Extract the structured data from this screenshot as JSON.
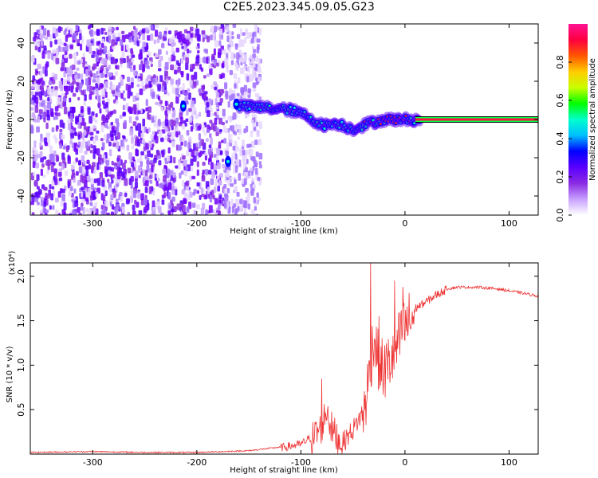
{
  "title": "C2E5.2023.345.09.05.G23",
  "chart_data": [
    {
      "type": "heatmap",
      "xlabel": "Height of straight line (km)",
      "ylabel": "Frequency (Hz)",
      "xlim": [
        -360,
        128
      ],
      "ylim": [
        -50,
        50
      ],
      "x_ticks": [
        -300,
        -200,
        -100,
        0,
        100
      ],
      "y_ticks": [
        -40,
        -20,
        0,
        20,
        40
      ],
      "colorbar": {
        "label": "Normalized spectral amplitude",
        "range": [
          0,
          1
        ],
        "ticks": [
          0.0,
          0.2,
          0.4,
          0.6,
          0.8
        ],
        "colors": [
          "#ffffff",
          "#c8a0ff",
          "#8a2be2",
          "#5a00ff",
          "#0000ff",
          "#00bfff",
          "#00ffcc",
          "#00ff00",
          "#c8ff00",
          "#ffcc00",
          "#ff5500",
          "#ff0040",
          "#ff1493"
        ]
      },
      "features": {
        "noise_region_x": [
          -360,
          -140
        ],
        "signal_track": [
          [
            -160,
            7
          ],
          [
            -130,
            6
          ],
          [
            -110,
            5
          ],
          [
            -95,
            2
          ],
          [
            -80,
            -3
          ],
          [
            -65,
            -2
          ],
          [
            -50,
            -5
          ],
          [
            -35,
            -2
          ],
          [
            -20,
            0
          ],
          [
            0,
            0
          ],
          [
            128,
            0
          ]
        ],
        "constant_line_from_x": 10,
        "constant_line_freq": 0
      }
    },
    {
      "type": "line",
      "xlabel": "Height of straight line (km)",
      "ylabel": "SNR (10 * v/v)",
      "yscale_label": "(x10⁴)",
      "xlim": [
        -360,
        128
      ],
      "ylim": [
        0,
        2.15
      ],
      "x_ticks": [
        -300,
        -200,
        -100,
        0,
        100
      ],
      "y_ticks": [
        0.5,
        1.0,
        1.5,
        2.0
      ],
      "line_color": "#ee3333",
      "series": [
        {
          "x": [
            -360,
            -300,
            -250,
            -200,
            -150,
            -120,
            -100,
            -90,
            -80,
            -75,
            -70,
            -60,
            -50,
            -40,
            -35,
            -30,
            -25,
            -20,
            -10,
            0,
            10,
            20,
            30,
            40,
            50,
            70,
            90,
            110,
            128
          ],
          "y": [
            0.02,
            0.03,
            0.02,
            0.02,
            0.04,
            0.08,
            0.12,
            0.2,
            0.35,
            0.55,
            0.3,
            0.15,
            0.3,
            0.5,
            0.9,
            1.4,
            1.1,
            1.0,
            1.2,
            1.5,
            1.65,
            1.72,
            1.8,
            1.86,
            1.88,
            1.88,
            1.86,
            1.82,
            1.78
          ],
          "spikes": [
            [
              -80,
              0.85
            ],
            [
              -33,
              2.15
            ],
            [
              -25,
              1.55
            ],
            [
              -10,
              1.95
            ],
            [
              -2,
              1.88
            ]
          ]
        }
      ]
    }
  ]
}
